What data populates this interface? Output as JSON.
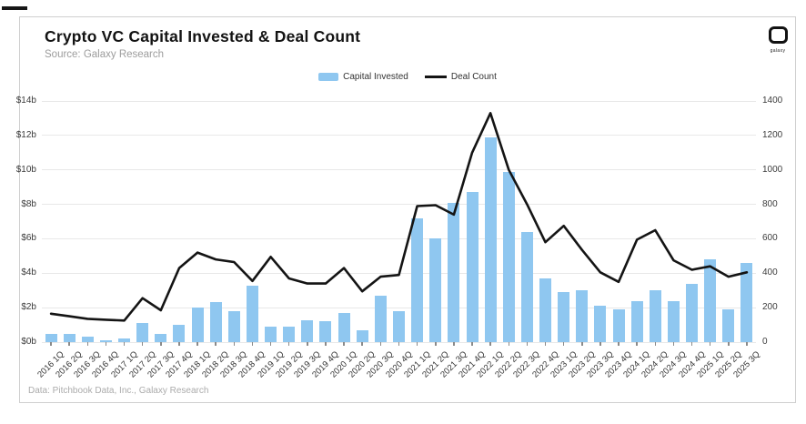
{
  "page": {
    "title": "Crypto VC Capital Invested & Deal Count",
    "subtitle": "Source: Galaxy Research",
    "footer": "Data: Pitchbook Data, Inc., Galaxy Research"
  },
  "logo": {
    "text": "galaxy"
  },
  "legend": [
    {
      "label": "Capital Invested",
      "marker": "bar",
      "color": "#8FC7F0"
    },
    {
      "label": "Deal Count",
      "marker": "line",
      "color": "#141414"
    }
  ],
  "colors": {
    "bar": "#8FC7F0",
    "line": "#141414",
    "grid": "#e8e8e8",
    "background": "#ffffff",
    "card_border": "#cfcfcf"
  },
  "chart_data": {
    "type": "bar+line",
    "title": "Crypto VC Capital Invested & Deal Count",
    "grid": true,
    "legend_position": "top-center",
    "categories": [
      "2016 1Q",
      "2016 2Q",
      "2016 3Q",
      "2016 4Q",
      "2017 1Q",
      "2017 2Q",
      "2017 3Q",
      "2017 4Q",
      "2018 1Q",
      "2018 2Q",
      "2018 3Q",
      "2018 4Q",
      "2019 1Q",
      "2019 2Q",
      "2019 3Q",
      "2019 4Q",
      "2020 1Q",
      "2020 2Q",
      "2020 3Q",
      "2020 4Q",
      "2021 1Q",
      "2021 2Q",
      "2021 3Q",
      "2021 4Q",
      "2022 1Q",
      "2022 2Q",
      "2022 3Q",
      "2022 4Q",
      "2023 1Q",
      "2023 2Q",
      "2023 3Q",
      "2023 4Q",
      "2024 1Q",
      "2024 2Q",
      "2024 3Q",
      "2024 4Q",
      "2025 1Q",
      "2025 2Q",
      "2025 3Q"
    ],
    "series": [
      {
        "name": "Capital Invested",
        "type": "bar",
        "axis": "left",
        "unit": "$ billions",
        "color": "#8FC7F0",
        "values": [
          0.45,
          0.5,
          0.3,
          0.1,
          0.2,
          1.1,
          0.45,
          1.0,
          2.0,
          2.3,
          1.8,
          3.3,
          0.9,
          0.9,
          1.25,
          1.2,
          1.7,
          0.7,
          2.7,
          1.8,
          7.2,
          6.0,
          8.1,
          8.7,
          11.9,
          9.9,
          6.4,
          3.7,
          2.9,
          3.0,
          2.1,
          1.9,
          2.4,
          3.0,
          2.4,
          3.4,
          4.8,
          1.9,
          4.6
        ]
      },
      {
        "name": "Deal Count",
        "type": "line",
        "axis": "right",
        "unit": "deals",
        "color": "#141414",
        "values": [
          165,
          150,
          135,
          130,
          125,
          255,
          185,
          430,
          520,
          480,
          465,
          355,
          495,
          370,
          340,
          340,
          430,
          295,
          380,
          390,
          790,
          795,
          740,
          1100,
          1330,
          1000,
          800,
          580,
          675,
          535,
          405,
          350,
          595,
          650,
          475,
          420,
          440,
          380,
          405
        ]
      }
    ],
    "left_axis": {
      "min": 0,
      "max": 14,
      "tick_values": [
        0,
        2,
        4,
        6,
        8,
        10,
        12,
        14
      ],
      "tick_labels": [
        "$0b",
        "$2b",
        "$4b",
        "$6b",
        "$8b",
        "$10b",
        "$12b",
        "$14b"
      ]
    },
    "right_axis": {
      "min": 0,
      "max": 1400,
      "tick_values": [
        0,
        200,
        400,
        600,
        800,
        1000,
        1200,
        1400
      ],
      "tick_labels": [
        "0",
        "200",
        "400",
        "600",
        "800",
        "1000",
        "1200",
        "1400"
      ]
    }
  }
}
